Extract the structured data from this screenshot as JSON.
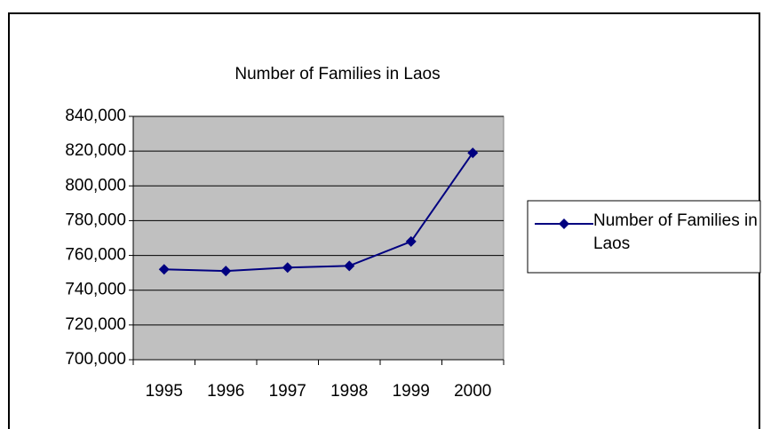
{
  "chart_data": {
    "type": "line",
    "title": "Number of Families in Laos",
    "categories": [
      "1995",
      "1996",
      "1997",
      "1998",
      "1999",
      "2000"
    ],
    "series": [
      {
        "name": "Number of Families in Laos",
        "color": "#000080",
        "values": [
          752000,
          751000,
          753000,
          754000,
          768000,
          819000
        ]
      }
    ],
    "ylim": [
      700000,
      840000
    ],
    "yticks": [
      {
        "value": 700000,
        "label": "700,000"
      },
      {
        "value": 720000,
        "label": "720,000"
      },
      {
        "value": 740000,
        "label": "740,000"
      },
      {
        "value": 760000,
        "label": "760,000"
      },
      {
        "value": 780000,
        "label": "780,000"
      },
      {
        "value": 800000,
        "label": "800,000"
      },
      {
        "value": 820000,
        "label": "820,000"
      },
      {
        "value": 840000,
        "label": "840,000"
      }
    ],
    "grid": true,
    "plot_background": "#c0c0c0",
    "legend": "right"
  }
}
